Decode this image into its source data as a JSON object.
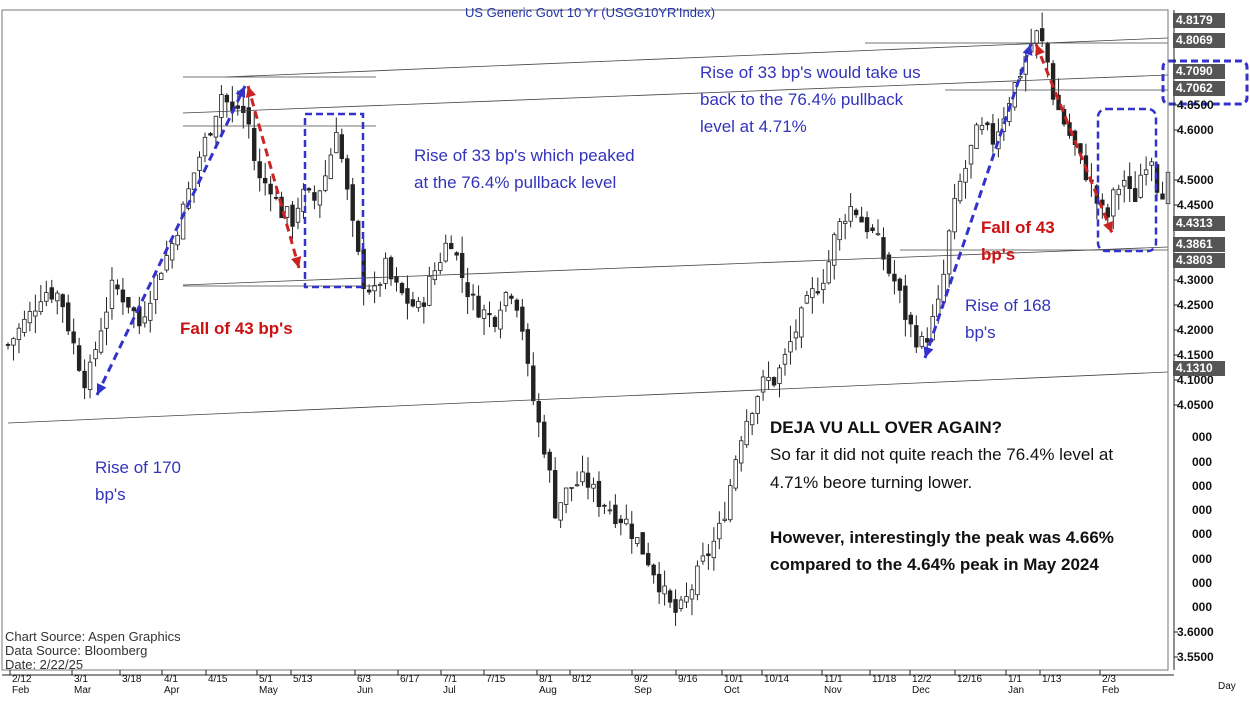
{
  "chart_data": {
    "type": "candlestick",
    "title": "US  Generic  Govt  10  Yr  (USGG10YR'Index)",
    "ylim": [
      3.52,
      4.84
    ],
    "y_ticks": [
      {
        "label": "4.6500",
        "value": 4.65
      },
      {
        "label": "4.6000",
        "value": 4.6
      },
      {
        "label": "4.5000",
        "value": 4.5
      },
      {
        "label": "4.4500",
        "value": 4.45
      },
      {
        "label": "4.3000",
        "value": 4.3
      },
      {
        "label": "4.2500",
        "value": 4.25
      },
      {
        "label": "4.2000",
        "value": 4.2
      },
      {
        "label": "4.1500",
        "value": 4.15
      },
      {
        "label": "4.1000",
        "value": 4.1
      },
      {
        "label": "4.0500",
        "value": 4.05
      },
      {
        "label": "3.6000",
        "value": 3.6
      },
      {
        "label": "3.5500",
        "value": 3.55
      }
    ],
    "level_labels": [
      {
        "label": "4.8179",
        "value": 4.8179,
        "style": "dark"
      },
      {
        "label": "4.8069",
        "value": 4.8069,
        "style": "dark"
      },
      {
        "label": "4.7090",
        "value": 4.709,
        "style": "dark"
      },
      {
        "label": "4.7062",
        "value": 4.7062,
        "style": "dark"
      },
      {
        "label": "4.4313",
        "value": 4.4313,
        "style": "dark"
      },
      {
        "label": "4.3861",
        "value": 4.3861,
        "style": "dark"
      },
      {
        "label": "4.3803",
        "value": 4.3803,
        "style": "dark"
      },
      {
        "label": "4.1310",
        "value": 4.131,
        "style": "dark"
      }
    ],
    "partial_ticks": [
      "000",
      "000",
      "000",
      "000",
      "000",
      "000",
      "000",
      "000"
    ],
    "x_ticks": [
      "2/12",
      "3/1",
      "3/18",
      "4/1",
      "4/15",
      "5/1",
      "5/13",
      "6/3",
      "6/17",
      "7/1",
      "7/15",
      "8/1",
      "8/12",
      "9/2",
      "9/16",
      "10/1",
      "10/14",
      "11/1",
      "11/18",
      "12/2",
      "12/16",
      "1/1",
      "1/13",
      "2/3"
    ],
    "x_months": [
      "Feb",
      "Mar",
      "Apr",
      "May",
      "Jun",
      "Jul",
      "Aug",
      "Sep",
      "Oct",
      "Nov",
      "Dec",
      "Jan",
      "Feb"
    ],
    "x_unit": "Day",
    "close_path": [
      [
        0,
        4.17
      ],
      [
        5,
        4.23
      ],
      [
        8,
        4.28
      ],
      [
        12,
        4.27
      ],
      [
        14,
        4.2
      ],
      [
        16,
        4.14
      ],
      [
        18,
        4.09
      ],
      [
        21,
        4.2
      ],
      [
        24,
        4.29
      ],
      [
        28,
        4.25
      ],
      [
        30,
        4.21
      ],
      [
        34,
        4.31
      ],
      [
        37,
        4.36
      ],
      [
        40,
        4.44
      ],
      [
        43,
        4.53
      ],
      [
        46,
        4.6
      ],
      [
        49,
        4.68
      ],
      [
        51,
        4.63
      ],
      [
        53,
        4.65
      ],
      [
        55,
        4.61
      ],
      [
        57,
        4.5
      ],
      [
        60,
        4.49
      ],
      [
        62,
        4.44
      ],
      [
        65,
        4.42
      ],
      [
        67,
        4.47
      ],
      [
        70,
        4.46
      ],
      [
        73,
        4.52
      ],
      [
        75,
        4.61
      ],
      [
        77,
        4.5
      ],
      [
        79,
        4.39
      ],
      [
        81,
        4.3
      ],
      [
        84,
        4.27
      ],
      [
        86,
        4.33
      ],
      [
        88,
        4.29
      ],
      [
        91,
        4.26
      ],
      [
        94,
        4.24
      ],
      [
        96,
        4.29
      ],
      [
        99,
        4.35
      ],
      [
        101,
        4.39
      ],
      [
        104,
        4.3
      ],
      [
        106,
        4.26
      ],
      [
        108,
        4.24
      ],
      [
        111,
        4.22
      ],
      [
        113,
        4.27
      ],
      [
        115,
        4.28
      ],
      [
        117,
        4.24
      ],
      [
        119,
        4.1
      ],
      [
        121,
        4.02
      ],
      [
        123,
        3.95
      ],
      [
        125,
        3.84
      ],
      [
        127,
        3.87
      ],
      [
        129,
        3.89
      ],
      [
        132,
        3.9
      ],
      [
        135,
        3.86
      ],
      [
        137,
        3.85
      ],
      [
        139,
        3.83
      ],
      [
        141,
        3.82
      ],
      [
        143,
        3.79
      ],
      [
        145,
        3.76
      ],
      [
        147,
        3.73
      ],
      [
        149,
        3.69
      ],
      [
        151,
        3.65
      ],
      [
        153,
        3.63
      ],
      [
        155,
        3.66
      ],
      [
        157,
        3.7
      ],
      [
        159,
        3.74
      ],
      [
        161,
        3.77
      ],
      [
        163,
        3.81
      ],
      [
        165,
        3.89
      ],
      [
        167,
        3.98
      ],
      [
        169,
        4.03
      ],
      [
        171,
        4.07
      ],
      [
        173,
        4.1
      ],
      [
        175,
        4.1
      ],
      [
        177,
        4.13
      ],
      [
        179,
        4.18
      ],
      [
        181,
        4.22
      ],
      [
        183,
        4.26
      ],
      [
        185,
        4.29
      ],
      [
        187,
        4.32
      ],
      [
        189,
        4.39
      ],
      [
        191,
        4.43
      ],
      [
        193,
        4.45
      ],
      [
        195,
        4.42
      ],
      [
        197,
        4.4
      ],
      [
        199,
        4.37
      ],
      [
        201,
        4.32
      ],
      [
        203,
        4.29
      ],
      [
        205,
        4.23
      ],
      [
        207,
        4.19
      ],
      [
        209,
        4.17
      ],
      [
        211,
        4.21
      ],
      [
        213,
        4.26
      ],
      [
        215,
        4.39
      ],
      [
        217,
        4.48
      ],
      [
        219,
        4.53
      ],
      [
        221,
        4.59
      ],
      [
        223,
        4.6
      ],
      [
        225,
        4.58
      ],
      [
        227,
        4.62
      ],
      [
        229,
        4.67
      ],
      [
        231,
        4.71
      ],
      [
        233,
        4.76
      ],
      [
        235,
        4.79
      ],
      [
        237,
        4.76
      ],
      [
        239,
        4.66
      ],
      [
        241,
        4.62
      ],
      [
        243,
        4.58
      ],
      [
        245,
        4.54
      ],
      [
        247,
        4.5
      ],
      [
        249,
        4.45
      ],
      [
        251,
        4.42
      ],
      [
        253,
        4.48
      ],
      [
        255,
        4.5
      ],
      [
        257,
        4.45
      ],
      [
        259,
        4.52
      ],
      [
        261,
        4.56
      ],
      [
        263,
        4.47
      ],
      [
        265,
        4.5
      ]
    ],
    "x_scale": {
      "days": 265
    },
    "annotations": [
      {
        "text_lines": [
          "Rise of 170",
          "bp's"
        ],
        "color": "#3333bb"
      },
      {
        "text_lines": [
          "Fall of 43 bp's"
        ],
        "color": "#cc1111"
      },
      {
        "text_lines": [
          "Rise of 33 bp's which peaked",
          "at the 76.4% pullback level"
        ],
        "color": "#3333bb"
      },
      {
        "text_lines": [
          "Rise of 33 bp's would take us",
          "back to the 76.4% pullback",
          "level at 4.71%"
        ],
        "color": "#3333bb"
      },
      {
        "text_lines": [
          "Fall of 43",
          "bp's"
        ],
        "color": "#cc1111"
      },
      {
        "text_lines": [
          "Rise of 168",
          "bp's"
        ],
        "color": "#3333bb"
      }
    ],
    "note": {
      "title": "DEJA VU ALL OVER AGAIN?",
      "lines": [
        "So far it did not quite reach the 76.4% level at",
        "4.71% beore turning lower.",
        "",
        "However, interestingly the peak was 4.66%",
        "compared to the 4.64% peak in May 2024"
      ]
    },
    "source": [
      "Chart  Source:  Aspen  Graphics",
      "Data  Source:  Bloomberg",
      "Date:    2/22/25"
    ],
    "colors": {
      "candle": "#222222",
      "blue": "#3333cc",
      "red": "#cc2222",
      "grid": "#555555"
    }
  }
}
